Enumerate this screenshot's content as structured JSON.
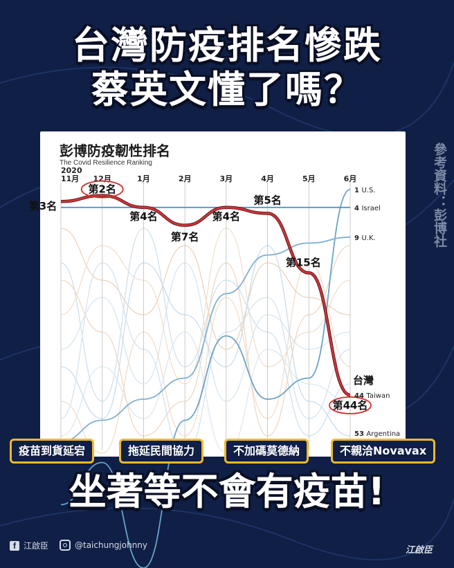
{
  "headline": {
    "line1": "台灣防疫排名慘跌",
    "line2": "蔡英文懂了嗎？"
  },
  "chart": {
    "title": "彭博防疫韌性排名",
    "subtitle": "The Covid Resilience Ranking",
    "year_label": "2020",
    "months": [
      "11月",
      "12月",
      "1月",
      "2月",
      "3月",
      "4月",
      "5月",
      "6月"
    ],
    "right_labels": [
      {
        "rank": "1",
        "country": "U.S."
      },
      {
        "rank": "4",
        "country": "Israel"
      },
      {
        "rank": "9",
        "country": "U.K."
      },
      {
        "rank": "44",
        "country": "Taiwan"
      },
      {
        "rank": "53",
        "country": "Argentina"
      }
    ],
    "taiwan_label": "台灣",
    "rank_callouts": [
      "第3名",
      "第2名",
      "第4名",
      "第7名",
      "第4名",
      "第5名",
      "第15名",
      "第44名"
    ]
  },
  "side_note": "參考資料：彭博社",
  "tags": [
    "疫苗到貨延宕",
    "拖延民間協力",
    "不加碼莫德納",
    "不親洽Novavax"
  ],
  "bottom_headline": "坐著等不會有疫苗!",
  "footer": {
    "facebook_name": "江啟臣",
    "instagram_handle": "@taichungjohnny",
    "logo_text": "江啟臣"
  },
  "colors": {
    "background": "#0f1f45",
    "taiwan_line": "#c8363b",
    "tag_border": "#f0b82d",
    "blue_lines": "#5b92b8",
    "orange_lines": "#e3b48a"
  },
  "chart_data": {
    "type": "line",
    "title": "彭博防疫韌性排名",
    "subtitle": "The Covid Resilience Ranking",
    "categories": [
      "11月",
      "12月",
      "1月",
      "2月",
      "3月",
      "4月",
      "5月",
      "6月"
    ],
    "series": [
      {
        "name": "Taiwan",
        "values": [
          3,
          2,
          4,
          7,
          4,
          5,
          15,
          44
        ]
      },
      {
        "name": "U.S.",
        "values": [
          null,
          null,
          null,
          null,
          null,
          null,
          null,
          1
        ]
      },
      {
        "name": "Israel",
        "values": [
          null,
          null,
          null,
          null,
          null,
          null,
          null,
          4
        ]
      },
      {
        "name": "U.K.",
        "values": [
          null,
          null,
          null,
          null,
          null,
          null,
          null,
          9
        ]
      }
    ],
    "y_inverted": true
  }
}
